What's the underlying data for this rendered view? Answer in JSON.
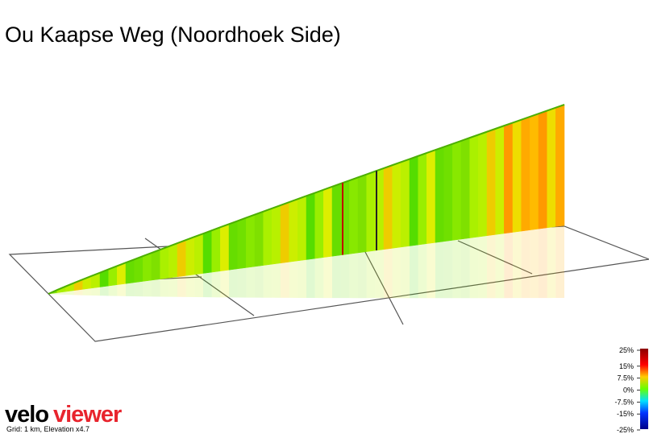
{
  "chart_data": {
    "type": "elevation-profile",
    "title": "Ou Kaapse Weg (Noordhoek Side)",
    "colorbar": {
      "lim": [
        -25,
        25
      ],
      "ticks": [
        {
          "value": 25,
          "label": "25%"
        },
        {
          "value": 15,
          "label": "15%"
        },
        {
          "value": 7.5,
          "label": "7.5%"
        },
        {
          "value": 0,
          "label": "0%"
        },
        {
          "value": -7.5,
          "label": "-7.5%"
        },
        {
          "value": -15,
          "label": "-15%"
        },
        {
          "value": -25,
          "label": "-25%"
        }
      ]
    }
  },
  "branding": {
    "logo_part1": "velo",
    "logo_part2": "viewer",
    "note": "Grid: 1 km, Elevation x4.7"
  }
}
